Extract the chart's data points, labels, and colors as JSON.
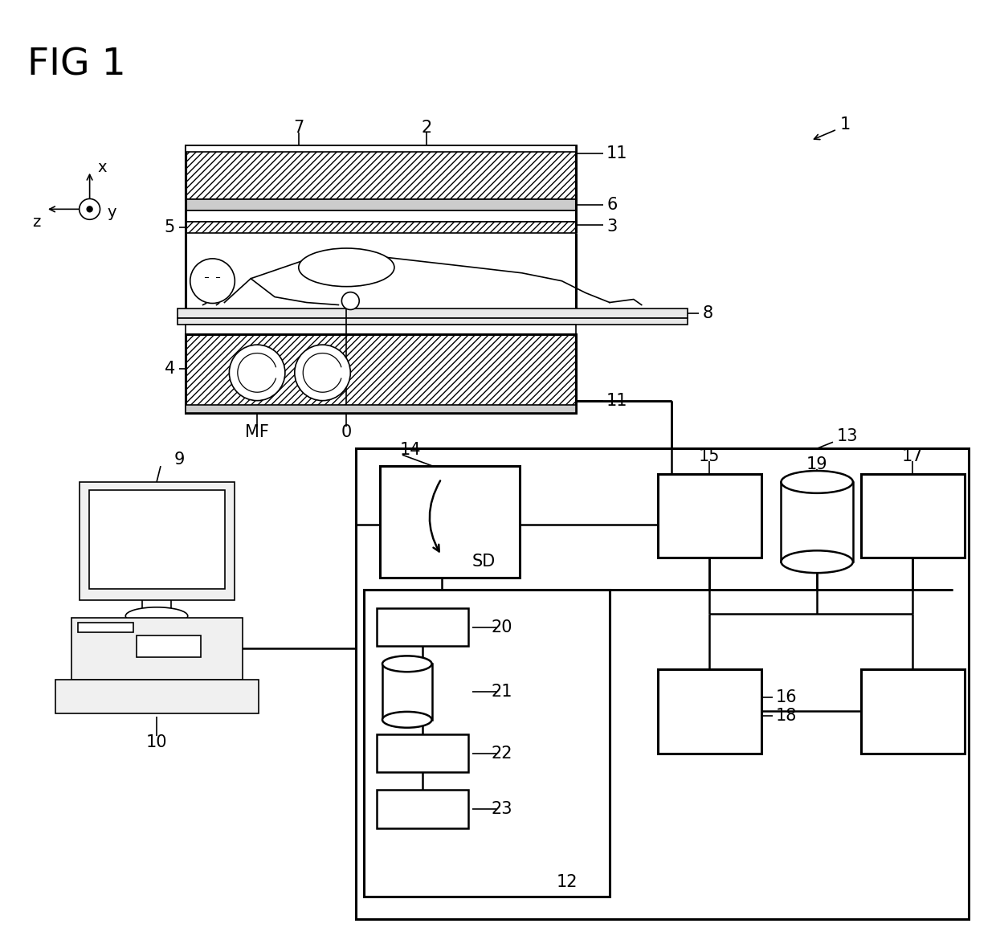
{
  "bg_color": "#ffffff",
  "fig_width": 12.4,
  "fig_height": 11.8,
  "labels": {
    "fig_title": "FIG 1",
    "ref1": "1",
    "ref2": "2",
    "ref3": "3",
    "ref4": "4",
    "ref5": "5",
    "ref6": "6",
    "ref7": "7",
    "ref8": "8",
    "ref9": "9",
    "ref10": "10",
    "ref11a": "11",
    "ref11b": "11",
    "ref12": "12",
    "ref13": "13",
    "ref14": "14",
    "ref15": "15",
    "ref16": "16",
    "ref17": "17",
    "ref18": "18",
    "ref19": "19",
    "ref20": "20",
    "ref21": "21",
    "ref22": "22",
    "ref23": "23",
    "refMF": "MF",
    "ref0": "0",
    "axis_x": "x",
    "axis_y": "y",
    "axis_z": "z",
    "label_SD": "SD"
  }
}
